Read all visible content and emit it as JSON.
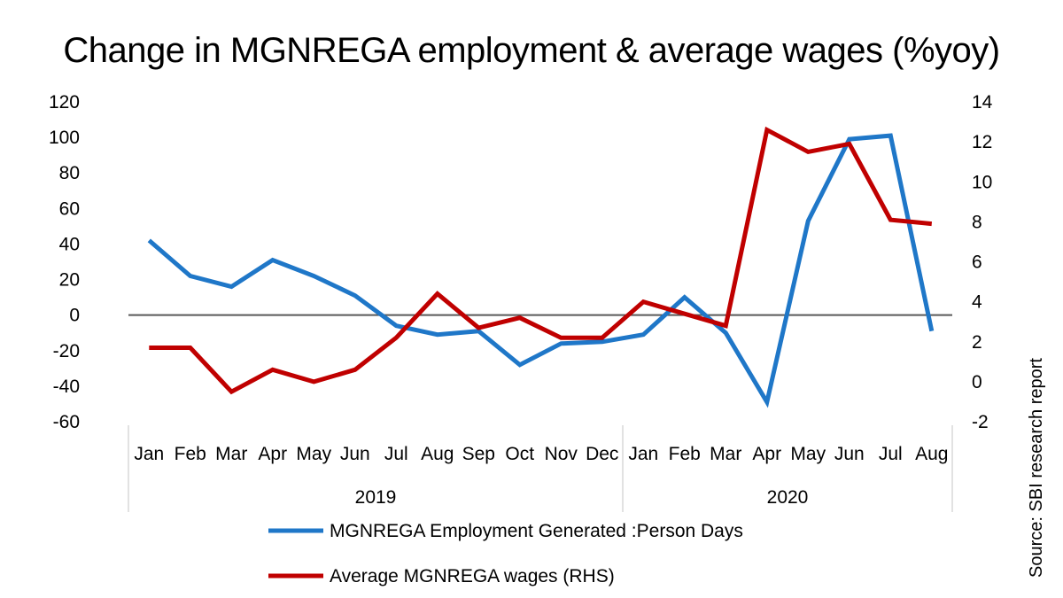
{
  "chart_data": {
    "type": "line",
    "title": "Change in MGNREGA  employment & average wages (%yoy)",
    "categories": [
      "Jan",
      "Feb",
      "Mar",
      "Apr",
      "May",
      "Jun",
      "Jul",
      "Aug",
      "Sep",
      "Oct",
      "Nov",
      "Dec",
      "Jan",
      "Feb",
      "Mar",
      "Apr",
      "May",
      "Jun",
      "Jul",
      "Aug"
    ],
    "year_groups": [
      {
        "label": "2019",
        "start": 0,
        "end": 11
      },
      {
        "label": "2020",
        "start": 12,
        "end": 19
      }
    ],
    "y_left": {
      "min": -60,
      "max": 120,
      "step": 20,
      "ticks": [
        "120",
        "100",
        "80",
        "60",
        "40",
        "20",
        "0",
        "-20",
        "-40",
        "-60"
      ]
    },
    "y_right": {
      "min": -2,
      "max": 14,
      "step": 2,
      "ticks": [
        "14",
        "12",
        "10",
        "8",
        "6",
        "4",
        "2",
        "0",
        "-2"
      ]
    },
    "series": [
      {
        "name": "MGNREGA Employment Generated :Person Days",
        "axis": "left",
        "color": "#1f77c8",
        "values": [
          42,
          22,
          16,
          31,
          22,
          11,
          -6,
          -11,
          -9,
          -28,
          -16,
          -15,
          -11,
          10,
          -10,
          -49,
          53,
          99,
          101,
          -9
        ]
      },
      {
        "name": "Average MGNREGA wages (RHS)",
        "axis": "right",
        "color": "#c00000",
        "values": [
          1.7,
          1.7,
          -0.5,
          0.6,
          0.0,
          0.6,
          2.2,
          4.4,
          2.7,
          3.2,
          2.2,
          2.2,
          4.0,
          3.4,
          2.8,
          12.6,
          11.5,
          11.9,
          8.1,
          7.9
        ]
      }
    ],
    "source": "Source: SBI research report"
  }
}
